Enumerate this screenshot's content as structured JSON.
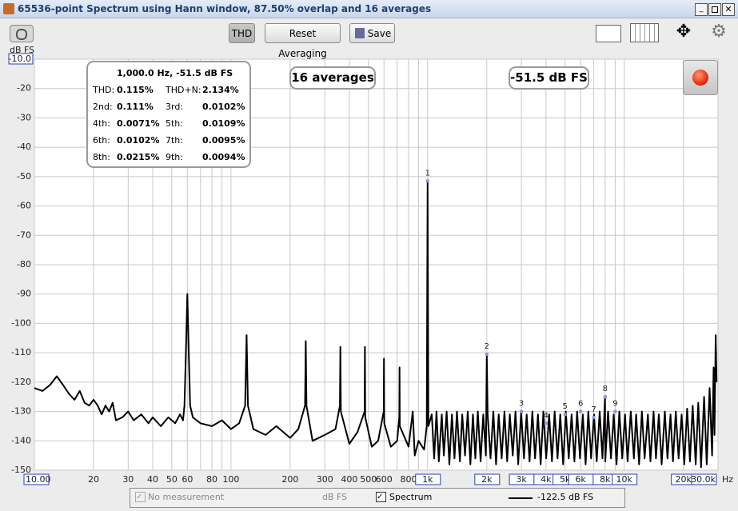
{
  "window": {
    "title": "65536-point Spectrum using Hann window, 87.50% overlap and 16 averages"
  },
  "toolbar": {
    "buttons": [
      "THD",
      "Reset Averaging",
      "Save"
    ]
  },
  "readouts": {
    "averages": "16 averages",
    "level": "-51.5 dB FS"
  },
  "thd_panel": {
    "header": "1,000.0 Hz, -51.5 dB FS",
    "rows": [
      [
        "THD:",
        "0.115%",
        "THD+N:",
        "2.134%"
      ],
      [
        "2nd:",
        "0.111%",
        "3rd:",
        "0.0102%"
      ],
      [
        "4th:",
        "0.0071%",
        "5th:",
        "0.0109%"
      ],
      [
        "6th:",
        "0.0102%",
        "7th:",
        "0.0095%"
      ],
      [
        "8th:",
        "0.0215%",
        "9th:",
        "0.0094%"
      ]
    ]
  },
  "legend_bar": {
    "reference": "No measurement",
    "reference_unit": "dB FS",
    "series_value": "-122.5 dB FS"
  },
  "chart_data": {
    "type": "line",
    "y_label": "dB FS",
    "x_unit": "Hz",
    "log_x": true,
    "grid": true,
    "xlim": [
      10,
      30000
    ],
    "ylim": [
      -150,
      -10
    ],
    "xticks": [
      {
        "value": 10,
        "label": "10.00"
      },
      20,
      30,
      40,
      50,
      60,
      80,
      100,
      200,
      300,
      400,
      500,
      600,
      800,
      {
        "value": 1000,
        "label": "1k"
      },
      {
        "value": 2000,
        "label": "2k"
      },
      {
        "value": 3000,
        "label": "3k"
      },
      {
        "value": 4000,
        "label": "4k"
      },
      {
        "value": 5000,
        "label": "5k"
      },
      {
        "value": 6000,
        "label": "6k"
      },
      {
        "value": 8000,
        "label": "8k"
      },
      {
        "value": 10000,
        "label": "10k"
      },
      {
        "value": 20000,
        "label": "20k"
      },
      {
        "value": 30000,
        "label": "30.0k"
      }
    ],
    "xminor_ticks": [
      70,
      90,
      700,
      900,
      7000,
      9000
    ],
    "yticks": [
      {
        "value": -10,
        "label": "-10.0"
      },
      -20,
      -30,
      -40,
      -50,
      -60,
      -70,
      -80,
      -90,
      -100,
      -110,
      -120,
      -130,
      -140,
      -150
    ],
    "x": [
      10,
      11,
      12,
      13,
      14,
      15,
      16,
      17,
      18,
      19,
      20,
      21,
      22,
      23,
      24,
      25,
      26,
      28,
      30,
      32,
      35,
      38,
      40,
      44,
      48,
      52,
      55,
      57,
      58,
      59,
      60,
      61,
      62,
      64,
      70,
      80,
      90,
      100,
      110,
      118,
      120,
      122,
      130,
      150,
      170,
      200,
      220,
      238,
      240,
      242,
      260,
      300,
      340,
      358,
      360,
      362,
      400,
      440,
      478,
      480,
      482,
      520,
      560,
      598,
      600,
      602,
      650,
      700,
      718,
      720,
      722,
      800,
      840,
      860,
      900,
      960,
      990,
      1000,
      1010,
      1050,
      1080,
      1110,
      1140,
      1180,
      1210,
      1250,
      1290,
      1330,
      1370,
      1410,
      1460,
      1500,
      1550,
      1600,
      1650,
      1700,
      1750,
      1800,
      1860,
      1920,
      1980,
      2000,
      2020,
      2090,
      2160,
      2230,
      2300,
      2380,
      2460,
      2540,
      2620,
      2710,
      2800,
      2890,
      2990,
      3090,
      3190,
      3300,
      3410,
      3520,
      3640,
      3760,
      3880,
      4010,
      4150,
      4290,
      4430,
      4580,
      4730,
      4890,
      5050,
      5220,
      5400,
      5580,
      5760,
      5960,
      6160,
      6360,
      6570,
      6790,
      7020,
      7250,
      7500,
      7750,
      7990,
      8010,
      8280,
      8560,
      8850,
      9140,
      9450,
      9770,
      10100,
      10400,
      10800,
      11200,
      11500,
      11900,
      12300,
      12700,
      13200,
      13600,
      14100,
      14500,
      15000,
      15500,
      16100,
      16600,
      17200,
      17700,
      18300,
      18900,
      19600,
      20200,
      20900,
      21600,
      22300,
      23100,
      23800,
      24600,
      25500,
      26300,
      27200,
      28000,
      28500,
      28800,
      29200,
      29500
    ],
    "series": [
      {
        "name": "Spectrum",
        "color": "#000000",
        "values": [
          -122,
          -123,
          -121,
          -118,
          -121,
          -124,
          -126,
          -123,
          -127,
          -128,
          -126,
          -128,
          -131,
          -128,
          -130,
          -127,
          -133,
          -132,
          -130,
          -133,
          -131,
          -134,
          -132,
          -135,
          -132,
          -134,
          -131,
          -133,
          -128,
          -110,
          -90,
          -110,
          -128,
          -132,
          -134,
          -135,
          -133,
          -136,
          -134,
          -128,
          -104,
          -128,
          -136,
          -138,
          -135,
          -139,
          -136,
          -128,
          -106,
          -128,
          -140,
          -138,
          -136,
          -128,
          -108,
          -130,
          -141,
          -137,
          -130,
          -108,
          -132,
          -142,
          -140,
          -130,
          -112,
          -134,
          -142,
          -140,
          -132,
          -115,
          -135,
          -142,
          -130,
          -145,
          -140,
          -143,
          -135,
          -51.5,
          -135,
          -131,
          -146,
          -130,
          -147,
          -131,
          -145,
          -130,
          -148,
          -131,
          -146,
          -130,
          -147,
          -131,
          -145,
          -130,
          -148,
          -131,
          -146,
          -130,
          -147,
          -131,
          -145,
          -110.5,
          -131,
          -146,
          -130,
          -148,
          -131,
          -146,
          -130,
          -147,
          -131,
          -145,
          -130,
          -148,
          -130,
          -146,
          -131,
          -147,
          -130,
          -146,
          -131,
          -148,
          -130,
          -146,
          -131,
          -147,
          -130,
          -146,
          -131,
          -148,
          -130,
          -146,
          -131,
          -147,
          -130,
          -146,
          -131,
          -148,
          -130,
          -146,
          -131,
          -147,
          -130,
          -146,
          -125,
          -147,
          -130,
          -146,
          -131,
          -148,
          -130,
          -146,
          -131,
          -147,
          -130,
          -146,
          -131,
          -148,
          -130,
          -146,
          -131,
          -147,
          -130,
          -146,
          -131,
          -148,
          -130,
          -146,
          -131,
          -147,
          -130,
          -146,
          -131,
          -148,
          -129,
          -147,
          -128,
          -148,
          -127,
          -149,
          -125,
          -148,
          -122,
          -145,
          -115,
          -138,
          -104,
          -120
        ]
      }
    ],
    "harmonics": [
      {
        "label": "1",
        "x": 1000,
        "y": -51.5
      },
      {
        "label": "2",
        "x": 2000,
        "y": -110.5
      },
      {
        "label": "3",
        "x": 3000,
        "y": -130
      },
      {
        "label": "4",
        "x": 4000,
        "y": -134
      },
      {
        "label": "5",
        "x": 5000,
        "y": -131
      },
      {
        "label": "6",
        "x": 6000,
        "y": -130
      },
      {
        "label": "7",
        "x": 7000,
        "y": -132
      },
      {
        "label": "8",
        "x": 8000,
        "y": -125
      },
      {
        "label": "9",
        "x": 9000,
        "y": -130
      }
    ]
  }
}
